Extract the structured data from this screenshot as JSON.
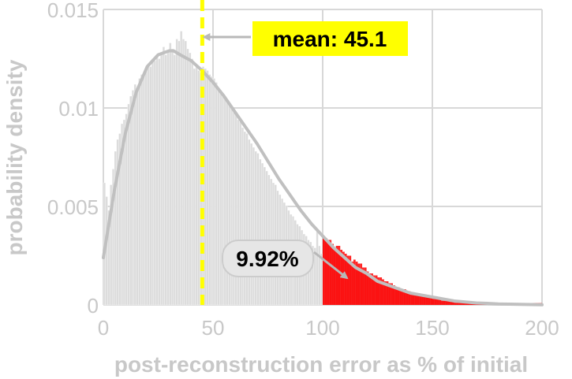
{
  "chart_data": {
    "type": "bar",
    "title": "",
    "xlabel": "post-reconstruction error as % of initial",
    "ylabel": "probability density",
    "xlim": [
      0,
      200
    ],
    "ylim": [
      0,
      0.015
    ],
    "x_ticks": [
      0,
      50,
      100,
      150,
      200
    ],
    "x_tick_labels": [
      "0",
      "50",
      "100",
      "150",
      "200"
    ],
    "y_ticks": [
      0,
      0.005,
      0.01,
      0.015
    ],
    "y_tick_labels": [
      "0",
      "0.005",
      "0.01",
      "0.015"
    ],
    "grid": true,
    "bin_width": 1,
    "highlight_threshold": 100,
    "histogram": {
      "x": [
        0,
        1,
        2,
        3,
        4,
        5,
        6,
        7,
        8,
        9,
        10,
        11,
        12,
        13,
        14,
        15,
        16,
        17,
        18,
        19,
        20,
        21,
        22,
        23,
        24,
        25,
        26,
        27,
        28,
        29,
        30,
        31,
        32,
        33,
        34,
        35,
        36,
        37,
        38,
        39,
        40,
        41,
        42,
        43,
        44,
        45,
        46,
        47,
        48,
        49,
        50,
        51,
        52,
        53,
        54,
        55,
        56,
        57,
        58,
        59,
        60,
        61,
        62,
        63,
        64,
        65,
        66,
        67,
        68,
        69,
        70,
        71,
        72,
        73,
        74,
        75,
        76,
        77,
        78,
        79,
        80,
        81,
        82,
        83,
        84,
        85,
        86,
        87,
        88,
        89,
        90,
        91,
        92,
        93,
        94,
        95,
        96,
        97,
        98,
        99,
        100,
        101,
        102,
        103,
        104,
        105,
        106,
        107,
        108,
        109,
        110,
        111,
        112,
        113,
        114,
        115,
        116,
        117,
        118,
        119,
        120,
        121,
        122,
        123,
        124,
        125,
        126,
        127,
        128,
        129,
        130,
        131,
        132,
        133,
        134,
        135,
        136,
        137,
        138,
        139,
        140,
        141,
        142,
        143,
        144,
        145,
        146,
        147,
        148,
        149,
        150,
        151,
        152,
        153,
        154,
        155,
        156,
        157,
        158,
        159,
        160,
        161,
        162,
        163,
        164,
        165,
        166,
        167,
        168,
        169,
        170,
        171,
        172,
        173,
        174,
        175,
        176,
        177,
        178,
        179,
        180,
        181,
        182,
        183,
        184,
        185,
        186,
        187,
        188,
        189,
        190,
        191,
        192,
        193,
        194,
        195,
        196,
        197,
        198,
        199
      ],
      "values": [
        0.0062,
        0.0055,
        0.0048,
        0.0061,
        0.0069,
        0.0078,
        0.0084,
        0.0087,
        0.0092,
        0.0094,
        0.0097,
        0.0102,
        0.0106,
        0.0109,
        0.0112,
        0.011,
        0.0115,
        0.0117,
        0.0116,
        0.012,
        0.0122,
        0.0121,
        0.0125,
        0.0124,
        0.0126,
        0.0125,
        0.0128,
        0.0131,
        0.0127,
        0.0129,
        0.0133,
        0.013,
        0.0127,
        0.0135,
        0.0134,
        0.0139,
        0.0135,
        0.0134,
        0.013,
        0.0128,
        0.0125,
        0.012,
        0.0122,
        0.0119,
        0.0118,
        0.0121,
        0.012,
        0.0119,
        0.0117,
        0.0116,
        0.0115,
        0.0113,
        0.011,
        0.0109,
        0.0107,
        0.0105,
        0.0104,
        0.0102,
        0.01,
        0.0098,
        0.0097,
        0.0094,
        0.0093,
        0.009,
        0.0088,
        0.0087,
        0.0084,
        0.0082,
        0.008,
        0.0078,
        0.0077,
        0.0074,
        0.0072,
        0.007,
        0.0068,
        0.0066,
        0.0064,
        0.0062,
        0.0061,
        0.0058,
        0.0056,
        0.0054,
        0.0052,
        0.005,
        0.0048,
        0.0046,
        0.0045,
        0.0043,
        0.0041,
        0.004,
        0.0038,
        0.0036,
        0.0035,
        0.0033,
        0.0032,
        0.003,
        0.0029,
        0.0038,
        0.003,
        0.0026,
        0.0035,
        0.0034,
        0.0033,
        0.0033,
        0.0031,
        0.0029,
        0.003,
        0.003,
        0.0028,
        0.0027,
        0.0026,
        0.0025,
        0.0025,
        0.0022,
        0.0023,
        0.0022,
        0.0021,
        0.0021,
        0.0019,
        0.0019,
        0.0017,
        0.0016,
        0.0016,
        0.0015,
        0.0015,
        0.0014,
        0.0014,
        0.0013,
        0.0012,
        0.0012,
        0.0011,
        0.0011,
        0.001,
        0.0009,
        0.0009,
        0.0008,
        0.0008,
        0.0008,
        0.0007,
        0.0007,
        0.0006,
        0.0006,
        0.0006,
        0.0005,
        0.0005,
        0.0005,
        0.0004,
        0.0004,
        0.0004,
        0.0004,
        0.0003,
        0.0003,
        0.0003,
        0.0003,
        0.0002,
        0.0002,
        0.0002,
        0.0002,
        0.0002,
        0.0002,
        0.0001,
        0.0001,
        0.0001,
        0.0001,
        0.0001,
        0.0001,
        0.0001,
        0.0001,
        0.0001,
        0.0001,
        0.0001,
        0.0001,
        0.0001,
        0.0001,
        0.0001,
        0.0001,
        0.0001,
        0.0001,
        0.0001,
        0.0001,
        0.0001,
        0.0001,
        0.0001,
        0.0001,
        0.0001,
        0.0001,
        0.0001,
        0.0001,
        0.0001,
        0.0001,
        0.0001,
        0.0001,
        0.0001,
        0.0001,
        0.0001,
        0.0001,
        0.0001,
        0.0001,
        0.0001,
        0.0001
      ]
    },
    "fit_curve": {
      "x": [
        0,
        5,
        10,
        15,
        20,
        25,
        30,
        32,
        35,
        40,
        45,
        50,
        55,
        60,
        65,
        70,
        75,
        80,
        85,
        90,
        95,
        100,
        105,
        110,
        115,
        120,
        125,
        130,
        135,
        140,
        145,
        150,
        155,
        160,
        165,
        170,
        175,
        180,
        185,
        190,
        195,
        200
      ],
      "y": [
        0.0024,
        0.0058,
        0.0087,
        0.0108,
        0.0121,
        0.0127,
        0.0129,
        0.0129,
        0.0127,
        0.0124,
        0.0119,
        0.0113,
        0.0106,
        0.0098,
        0.009,
        0.0082,
        0.0073,
        0.0064,
        0.0056,
        0.0048,
        0.0041,
        0.0035,
        0.0029,
        0.0024,
        0.0019,
        0.0016,
        0.0012,
        0.001,
        0.0008,
        0.0006,
        0.0005,
        0.0004,
        0.0003,
        0.0002,
        0.00015,
        0.0001,
        8e-05,
        5e-05,
        4e-05,
        3e-05,
        2e-05,
        1e-05
      ]
    },
    "mean_line": {
      "x": 45.1
    },
    "annotations": {
      "mean_label": "mean: 45.1",
      "tail_label": "9.92%"
    },
    "colors": {
      "bar": "#dcdcdc",
      "bar_stroke": "#ffffff",
      "tail_bar": "#ff0000",
      "tail_shade": "#e06060",
      "curve": "#c0c0c0",
      "mean_line": "#ffff00",
      "mean_badge": "#ffff00",
      "tail_badge": "#e6e6e6",
      "grid": "#d8d8d8",
      "text": "#c8c8c8"
    }
  }
}
